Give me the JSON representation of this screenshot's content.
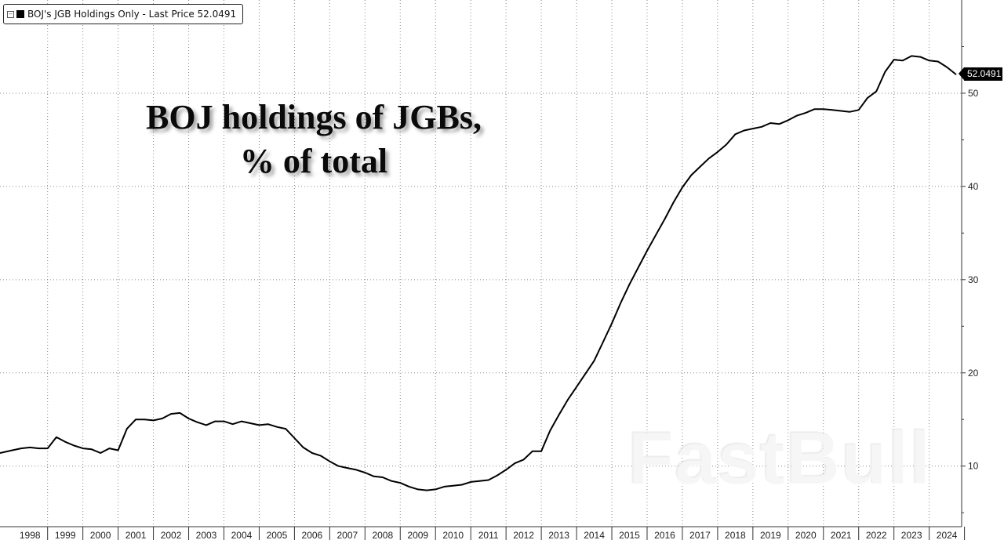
{
  "legend": {
    "toggle_icon": "collapse-box-icon",
    "text": "BOJ's JGB Holdings Only - Last Price 52.0491"
  },
  "title": {
    "line1": "BOJ holdings of JGBs,",
    "line2": "% of total"
  },
  "watermark": "FastBull",
  "last_price_label": "52.0491",
  "colors": {
    "background": "#ffffff",
    "line": "#000000",
    "grid": "#8a8a8a",
    "axis": "#333333",
    "price_tag_bg": "#000000"
  },
  "chart_data": {
    "type": "line",
    "title": "BOJ holdings of JGBs, % of total",
    "xlabel": "",
    "ylabel": "",
    "xlim": [
      1997.65,
      2024.92
    ],
    "ylim": [
      3.5,
      60
    ],
    "x_ticks": [
      "1998",
      "1999",
      "2000",
      "2001",
      "2002",
      "2003",
      "2004",
      "2005",
      "2006",
      "2007",
      "2008",
      "2009",
      "2010",
      "2011",
      "2012",
      "2013",
      "2014",
      "2015",
      "2016",
      "2017",
      "2018",
      "2019",
      "2020",
      "2021",
      "2022",
      "2023",
      "2024"
    ],
    "y_ticks": [
      10,
      20,
      30,
      40,
      50
    ],
    "grid": true,
    "y_axis_position": "right",
    "series": [
      {
        "name": "BOJ's JGB Holdings Only",
        "last_value": 52.0491,
        "points": [
          [
            1997.65,
            11.4
          ],
          [
            1998.0,
            11.7
          ],
          [
            1998.25,
            11.9
          ],
          [
            1998.5,
            12.0
          ],
          [
            1998.75,
            11.9
          ],
          [
            1999.0,
            11.9
          ],
          [
            1999.25,
            13.1
          ],
          [
            1999.5,
            12.6
          ],
          [
            1999.75,
            12.2
          ],
          [
            2000.0,
            11.9
          ],
          [
            2000.25,
            11.8
          ],
          [
            2000.5,
            11.4
          ],
          [
            2000.75,
            11.9
          ],
          [
            2001.0,
            11.7
          ],
          [
            2001.25,
            14.0
          ],
          [
            2001.5,
            15.0
          ],
          [
            2001.75,
            15.0
          ],
          [
            2002.0,
            14.9
          ],
          [
            2002.25,
            15.1
          ],
          [
            2002.5,
            15.6
          ],
          [
            2002.75,
            15.7
          ],
          [
            2003.0,
            15.1
          ],
          [
            2003.25,
            14.7
          ],
          [
            2003.5,
            14.4
          ],
          [
            2003.75,
            14.8
          ],
          [
            2004.0,
            14.8
          ],
          [
            2004.25,
            14.5
          ],
          [
            2004.5,
            14.8
          ],
          [
            2004.75,
            14.6
          ],
          [
            2005.0,
            14.4
          ],
          [
            2005.25,
            14.5
          ],
          [
            2005.5,
            14.2
          ],
          [
            2005.75,
            14.0
          ],
          [
            2006.0,
            13.0
          ],
          [
            2006.25,
            12.0
          ],
          [
            2006.5,
            11.4
          ],
          [
            2006.75,
            11.1
          ],
          [
            2007.0,
            10.5
          ],
          [
            2007.25,
            10.0
          ],
          [
            2007.5,
            9.8
          ],
          [
            2007.75,
            9.6
          ],
          [
            2008.0,
            9.3
          ],
          [
            2008.25,
            8.9
          ],
          [
            2008.5,
            8.8
          ],
          [
            2008.75,
            8.4
          ],
          [
            2009.0,
            8.2
          ],
          [
            2009.25,
            7.8
          ],
          [
            2009.5,
            7.5
          ],
          [
            2009.75,
            7.4
          ],
          [
            2010.0,
            7.5
          ],
          [
            2010.25,
            7.8
          ],
          [
            2010.5,
            7.9
          ],
          [
            2010.75,
            8.0
          ],
          [
            2011.0,
            8.3
          ],
          [
            2011.25,
            8.4
          ],
          [
            2011.5,
            8.5
          ],
          [
            2011.75,
            9.0
          ],
          [
            2012.0,
            9.6
          ],
          [
            2012.25,
            10.3
          ],
          [
            2012.5,
            10.7
          ],
          [
            2012.75,
            11.6
          ],
          [
            2013.0,
            11.6
          ],
          [
            2013.25,
            13.8
          ],
          [
            2013.5,
            15.5
          ],
          [
            2013.75,
            17.1
          ],
          [
            2014.0,
            18.5
          ],
          [
            2014.25,
            19.9
          ],
          [
            2014.5,
            21.3
          ],
          [
            2014.75,
            23.3
          ],
          [
            2015.0,
            25.3
          ],
          [
            2015.25,
            27.5
          ],
          [
            2015.5,
            29.5
          ],
          [
            2015.75,
            31.3
          ],
          [
            2016.0,
            33.1
          ],
          [
            2016.25,
            34.8
          ],
          [
            2016.5,
            36.5
          ],
          [
            2016.75,
            38.3
          ],
          [
            2017.0,
            39.9
          ],
          [
            2017.25,
            41.2
          ],
          [
            2017.5,
            42.1
          ],
          [
            2017.75,
            43.0
          ],
          [
            2018.0,
            43.7
          ],
          [
            2018.25,
            44.5
          ],
          [
            2018.5,
            45.6
          ],
          [
            2018.75,
            46.0
          ],
          [
            2019.0,
            46.2
          ],
          [
            2019.25,
            46.4
          ],
          [
            2019.5,
            46.8
          ],
          [
            2019.75,
            46.7
          ],
          [
            2020.0,
            47.1
          ],
          [
            2020.25,
            47.6
          ],
          [
            2020.5,
            47.9
          ],
          [
            2020.75,
            48.3
          ],
          [
            2021.0,
            48.3
          ],
          [
            2021.25,
            48.2
          ],
          [
            2021.5,
            48.1
          ],
          [
            2021.75,
            48.0
          ],
          [
            2022.0,
            48.2
          ],
          [
            2022.25,
            49.5
          ],
          [
            2022.5,
            50.2
          ],
          [
            2022.75,
            52.3
          ],
          [
            2023.0,
            53.6
          ],
          [
            2023.25,
            53.5
          ],
          [
            2023.5,
            54.0
          ],
          [
            2023.75,
            53.9
          ],
          [
            2024.0,
            53.5
          ],
          [
            2024.25,
            53.4
          ],
          [
            2024.5,
            52.8
          ],
          [
            2024.75,
            52.0491
          ]
        ]
      }
    ]
  }
}
